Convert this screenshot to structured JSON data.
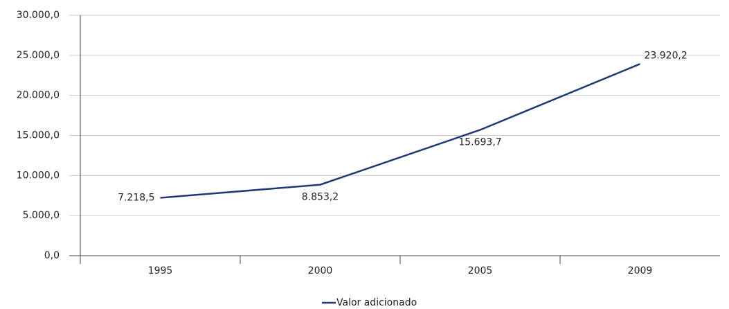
{
  "chart_data": {
    "type": "line",
    "categories": [
      "1995",
      "2000",
      "2005",
      "2009"
    ],
    "series": [
      {
        "name": "Valor adicionado",
        "color": "#1f3a70",
        "values": [
          7218.5,
          8853.2,
          15693.7,
          23920.2
        ],
        "value_labels": [
          "7.218,5",
          "8.853,2",
          "15.693,7",
          "23.920,2"
        ]
      }
    ],
    "ylim": [
      0,
      30000
    ],
    "yticks": [
      {
        "value": 0,
        "label": "0,0"
      },
      {
        "value": 5000,
        "label": "5.000,0"
      },
      {
        "value": 10000,
        "label": "10.000,0"
      },
      {
        "value": 15000,
        "label": "15.000,0"
      },
      {
        "value": 20000,
        "label": "20.000,0"
      },
      {
        "value": 25000,
        "label": "25.000,0"
      },
      {
        "value": 30000,
        "label": "30.000,0"
      }
    ],
    "grid": true,
    "legend": "bottom"
  }
}
